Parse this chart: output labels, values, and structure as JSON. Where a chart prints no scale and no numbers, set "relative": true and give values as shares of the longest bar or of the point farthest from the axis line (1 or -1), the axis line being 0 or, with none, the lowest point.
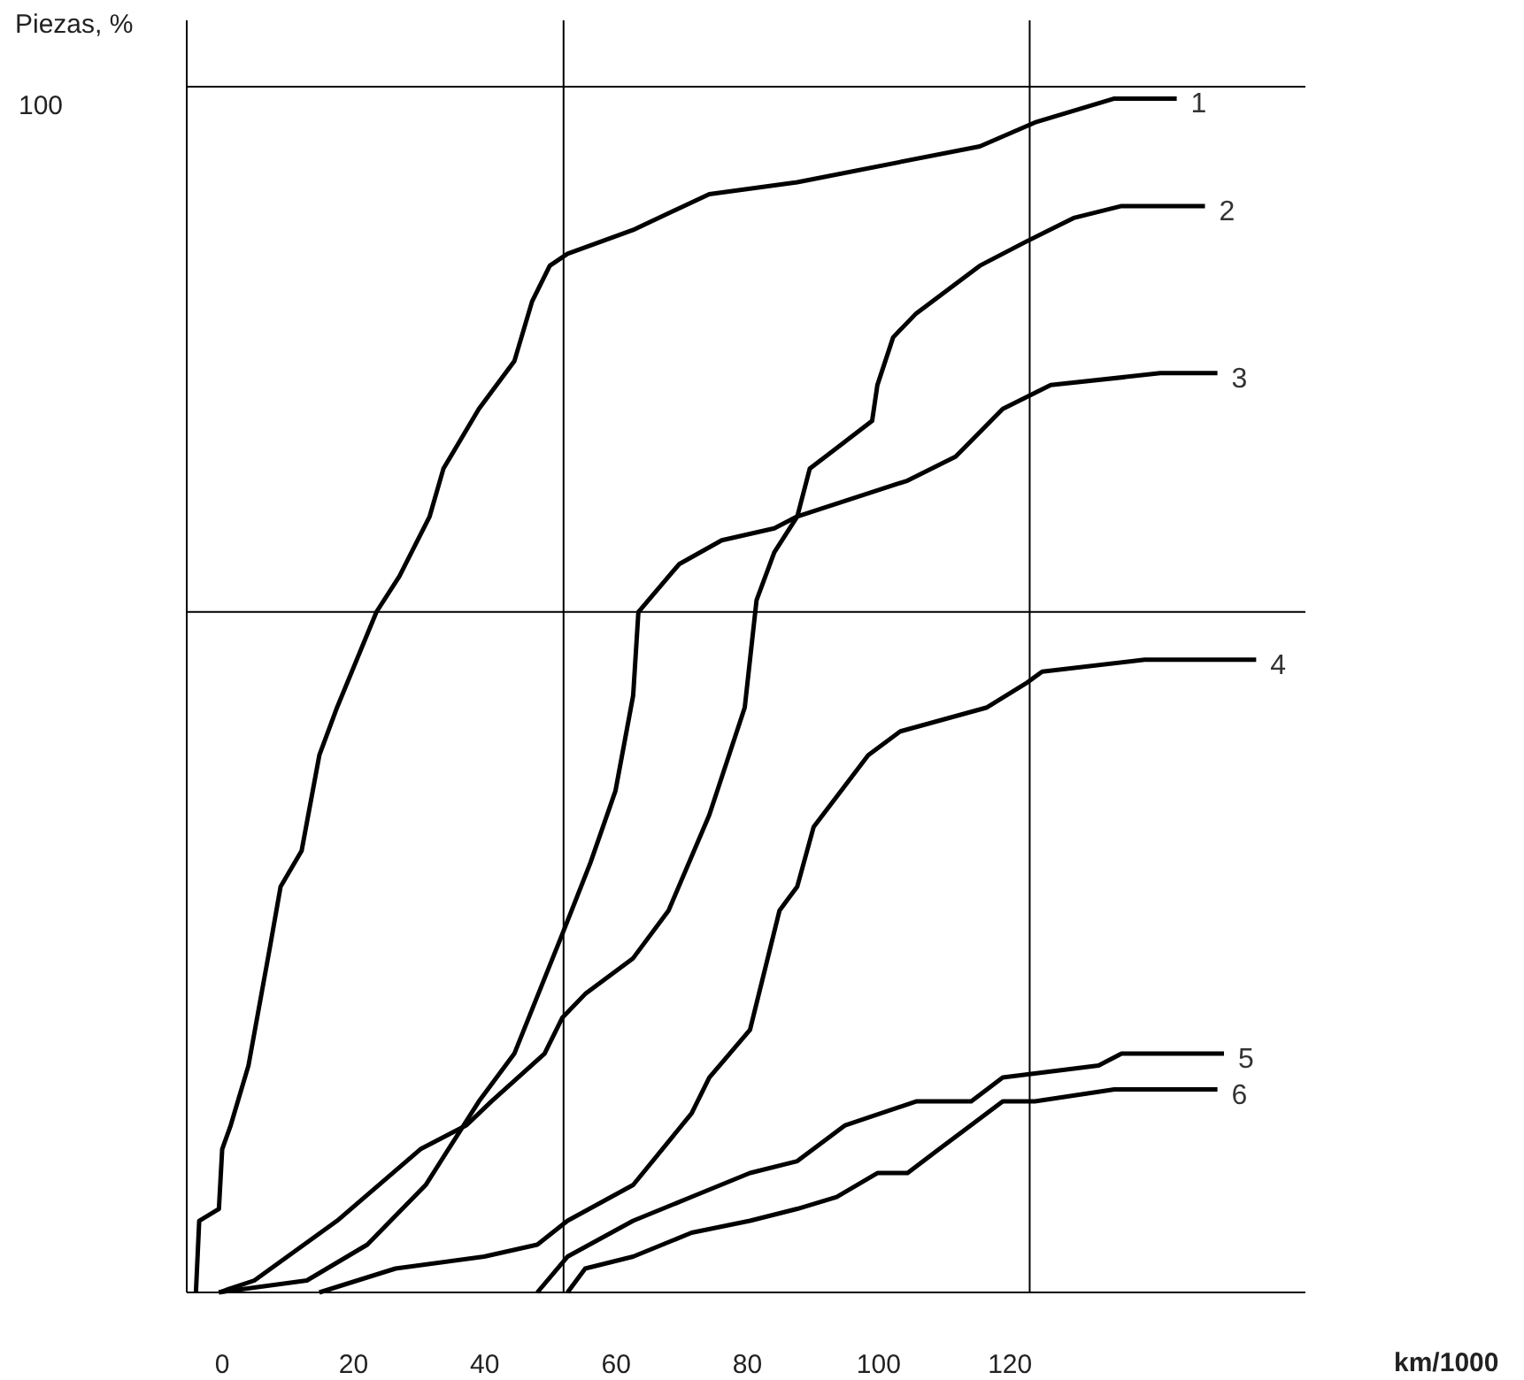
{
  "chart_data": {
    "type": "line",
    "xlabel": "km/1000",
    "ylabel": "Piezas, %",
    "relative": true,
    "annotations": [
      "100"
    ],
    "xlim": [
      -5.4,
      165
    ],
    "xticks": [
      0,
      20,
      40,
      60,
      80,
      100,
      120
    ],
    "grid": false,
    "marker": "none",
    "line_style": "solid",
    "ref_lines": [
      {
        "axis": "x",
        "value": 52,
        "label": null,
        "color": "#000000"
      },
      {
        "axis": "x",
        "value": 123,
        "label": null,
        "color": "#000000"
      },
      {
        "axis": "y",
        "value": 0.57,
        "label": null,
        "color": "#000000"
      },
      {
        "axis": "y",
        "value": 1.01,
        "label": null,
        "color": "#000000"
      }
    ],
    "series": [
      {
        "name": "1",
        "color": "#000000",
        "x": [
          -4.0,
          -3.5,
          -0.5,
          0,
          1.3,
          4.0,
          7.3,
          8.9,
          12.1,
          14.8,
          17.5,
          23.5,
          27.0,
          31.6,
          33.7,
          39.1,
          44.5,
          47.2,
          49.9,
          52.6,
          62.6,
          74.2,
          87.6,
          115.4,
          123.8,
          135.9,
          145.4
        ],
        "values": [
          0,
          0.06,
          0.07,
          0.12,
          0.14,
          0.19,
          0.29,
          0.34,
          0.37,
          0.45,
          0.49,
          0.57,
          0.6,
          0.65,
          0.69,
          0.74,
          0.78,
          0.83,
          0.86,
          0.87,
          0.89,
          0.92,
          0.93,
          0.96,
          0.98,
          1,
          1
        ]
      },
      {
        "name": "2",
        "color": "#000000",
        "x": [
          -0.5,
          4.9,
          17.5,
          30.2,
          37.2,
          41.0,
          49.1,
          51.8,
          55.3,
          62.6,
          68.0,
          74.2,
          79.6,
          81.4,
          84.1,
          87.6,
          89.5,
          99.0,
          99.8,
          102.2,
          105.7,
          115.4,
          122.4,
          129.7,
          137.0,
          149.7
        ],
        "values": [
          0,
          0.01,
          0.06,
          0.12,
          0.14,
          0.16,
          0.2,
          0.23,
          0.25,
          0.28,
          0.32,
          0.4,
          0.49,
          0.58,
          0.62,
          0.65,
          0.69,
          0.73,
          0.76,
          0.8,
          0.82,
          0.86,
          0.88,
          0.9,
          0.91,
          0.91
        ]
      },
      {
        "name": "3",
        "color": "#000000",
        "x": [
          -0.5,
          12.9,
          22.1,
          31.0,
          39.1,
          44.5,
          51.8,
          56.1,
          59.9,
          62.6,
          63.4,
          69.6,
          76.1,
          84.1,
          87.6,
          104.4,
          111.7,
          118.9,
          126.2,
          142.9,
          151.6
        ],
        "values": [
          0,
          0.01,
          0.04,
          0.09,
          0.16,
          0.2,
          0.3,
          0.36,
          0.42,
          0.5,
          0.57,
          0.61,
          0.63,
          0.64,
          0.65,
          0.68,
          0.7,
          0.74,
          0.76,
          0.77,
          0.77
        ]
      },
      {
        "name": "4",
        "color": "#000000",
        "x": [
          14.8,
          26.4,
          39.9,
          48.0,
          52.6,
          62.6,
          71.5,
          74.2,
          80.4,
          84.9,
          87.6,
          90.1,
          98.4,
          103.3,
          116.5,
          122.4,
          124.9,
          140.5,
          157.5
        ],
        "values": [
          0,
          0.02,
          0.03,
          0.04,
          0.06,
          0.09,
          0.15,
          0.18,
          0.22,
          0.32,
          0.34,
          0.39,
          0.45,
          0.47,
          0.49,
          0.51,
          0.52,
          0.53,
          0.53
        ]
      },
      {
        "name": "5",
        "color": "#000000",
        "x": [
          48.0,
          52.6,
          62.6,
          71.5,
          80.4,
          87.6,
          94.9,
          105.7,
          114.1,
          118.9,
          133.5,
          137.0,
          152.6
        ],
        "values": [
          0,
          0.03,
          0.06,
          0.08,
          0.1,
          0.11,
          0.14,
          0.16,
          0.16,
          0.18,
          0.19,
          0.2,
          0.2
        ]
      },
      {
        "name": "6",
        "color": "#000000",
        "x": [
          52.6,
          55.3,
          62.6,
          71.5,
          80.4,
          87.6,
          93.6,
          99.8,
          104.4,
          109.2,
          118.9,
          123.8,
          135.9,
          149.1,
          151.6
        ],
        "values": [
          0,
          0.02,
          0.03,
          0.05,
          0.06,
          0.07,
          0.08,
          0.1,
          0.1,
          0.12,
          0.16,
          0.16,
          0.17,
          0.17,
          0.17
        ]
      }
    ]
  }
}
